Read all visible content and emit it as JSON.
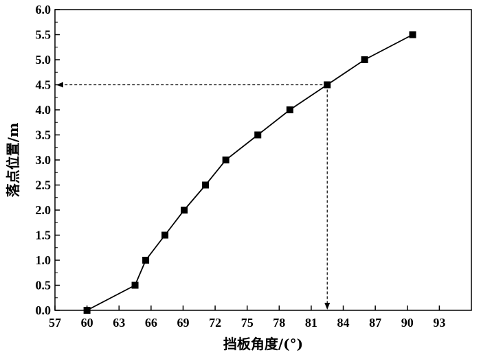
{
  "chart_data": {
    "type": "line",
    "xlabel": "挡板角度/(°)",
    "ylabel": "落点位置/m",
    "xlim": [
      57,
      96
    ],
    "ylim": [
      0,
      6
    ],
    "x_ticks": [
      57,
      60,
      63,
      66,
      69,
      72,
      75,
      78,
      81,
      84,
      87,
      90,
      93
    ],
    "y_ticks": [
      "0.0",
      "0.5",
      "1.0",
      "1.5",
      "2.0",
      "2.5",
      "3.0",
      "3.5",
      "4.0",
      "4.5",
      "5.0",
      "5.5",
      "6.0"
    ],
    "grid": false,
    "series": [
      {
        "marker": "square",
        "color": "#000000",
        "x": [
          60,
          64.5,
          65.5,
          67.3,
          69.1,
          71.1,
          73.0,
          76.0,
          79.0,
          82.5,
          86.0,
          90.5
        ],
        "y": [
          0.0,
          0.5,
          1.0,
          1.5,
          2.0,
          2.5,
          3.0,
          3.5,
          4.0,
          4.5,
          5.0,
          5.5
        ]
      }
    ],
    "annotations": [
      {
        "type": "dashed-arrow-to-y-axis",
        "x": 82.5,
        "y": 4.5
      },
      {
        "type": "dashed-arrow-to-x-axis",
        "x": 82.5,
        "y": 4.5
      }
    ]
  }
}
